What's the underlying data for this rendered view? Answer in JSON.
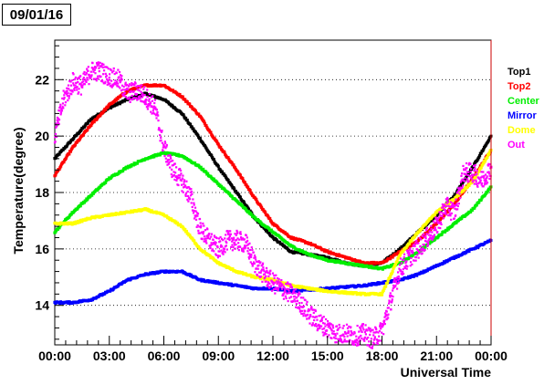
{
  "title": "09/01/16",
  "chart_data": {
    "type": "scatter",
    "xlabel": "Universal Time",
    "ylabel": "Temperature(degree)",
    "xlim": [
      0,
      24
    ],
    "ylim": [
      12.6,
      23.4
    ],
    "xticks": [
      0,
      3,
      6,
      9,
      12,
      15,
      18,
      21,
      24
    ],
    "xtick_labels": [
      "00:00",
      "03:00",
      "06:00",
      "09:00",
      "12:00",
      "15:00",
      "18:00",
      "21:00",
      "00:00"
    ],
    "yticks": [
      14,
      16,
      18,
      20,
      22
    ],
    "ytick_labels": [
      "14",
      "16",
      "18",
      "20",
      "22"
    ],
    "grid": "horizontal dotted",
    "legend_position": "right",
    "series": [
      {
        "name": "Top1",
        "color": "#000000",
        "x": [
          0,
          1,
          2,
          3,
          4,
          5,
          6,
          7,
          8,
          9,
          10,
          11,
          12,
          13,
          14,
          15,
          16,
          17,
          18,
          19,
          20,
          21,
          22,
          23,
          24
        ],
        "y": [
          19.2,
          19.9,
          20.6,
          21.0,
          21.3,
          21.5,
          21.3,
          20.8,
          19.9,
          18.9,
          18.0,
          17.1,
          16.4,
          15.9,
          15.8,
          15.7,
          15.5,
          15.4,
          15.5,
          16.0,
          16.6,
          17.2,
          17.9,
          18.9,
          20.0
        ]
      },
      {
        "name": "Top2",
        "color": "#ff0000",
        "x": [
          0,
          1,
          2,
          3,
          4,
          5,
          6,
          7,
          8,
          9,
          10,
          11,
          12,
          13,
          14,
          15,
          16,
          17,
          18,
          19,
          20,
          21,
          22,
          23,
          24
        ],
        "y": [
          18.6,
          19.6,
          20.4,
          21.1,
          21.6,
          21.8,
          21.8,
          21.4,
          20.7,
          19.7,
          18.8,
          17.8,
          16.9,
          16.4,
          16.2,
          15.9,
          15.7,
          15.5,
          15.5,
          15.9,
          16.3,
          16.9,
          17.6,
          18.5,
          19.5
        ]
      },
      {
        "name": "Center",
        "color": "#00ee00",
        "x": [
          0,
          1,
          2,
          3,
          4,
          5,
          6,
          7,
          8,
          9,
          10,
          11,
          12,
          13,
          14,
          15,
          16,
          17,
          18,
          19,
          20,
          21,
          22,
          23,
          24
        ],
        "y": [
          16.6,
          17.3,
          17.9,
          18.5,
          18.9,
          19.2,
          19.4,
          19.3,
          18.9,
          18.3,
          17.7,
          17.1,
          16.6,
          16.1,
          15.8,
          15.6,
          15.5,
          15.4,
          15.3,
          15.5,
          15.9,
          16.4,
          16.9,
          17.4,
          18.2
        ]
      },
      {
        "name": "Mirror",
        "color": "#0000ff",
        "x": [
          0,
          1,
          2,
          3,
          4,
          5,
          6,
          7,
          8,
          9,
          10,
          11,
          12,
          13,
          14,
          15,
          16,
          17,
          18,
          19,
          20,
          21,
          22,
          23,
          24
        ],
        "y": [
          14.1,
          14.1,
          14.2,
          14.5,
          14.9,
          15.1,
          15.2,
          15.2,
          14.9,
          14.8,
          14.7,
          14.6,
          14.6,
          14.5,
          14.55,
          14.6,
          14.65,
          14.7,
          14.8,
          14.9,
          15.1,
          15.4,
          15.7,
          16.0,
          16.3
        ]
      },
      {
        "name": "Dome",
        "color": "#ffff00",
        "x": [
          0,
          1,
          2,
          3,
          4,
          5,
          6,
          7,
          8,
          9,
          10,
          11,
          12,
          13,
          14,
          15,
          16,
          17,
          18,
          19,
          20,
          21,
          22,
          23,
          24
        ],
        "y": [
          16.9,
          16.9,
          17.1,
          17.2,
          17.3,
          17.4,
          17.2,
          16.8,
          16.0,
          15.5,
          15.2,
          15.0,
          14.9,
          14.7,
          14.6,
          14.5,
          14.45,
          14.4,
          14.4,
          15.8,
          16.6,
          17.3,
          17.8,
          18.4,
          19.5
        ]
      },
      {
        "name": "Out",
        "color": "#ff00ff",
        "x": [
          0,
          0.5,
          1,
          1.5,
          2,
          2.5,
          3,
          3.5,
          4,
          4.5,
          5,
          5.5,
          6,
          6.5,
          7,
          7.5,
          8,
          8.5,
          9,
          9.5,
          10,
          10.5,
          11,
          11.5,
          12,
          12.5,
          13,
          13.5,
          14,
          14.5,
          15,
          15.5,
          16,
          16.5,
          17,
          17.5,
          18,
          18.5,
          19,
          19.5,
          20,
          20.5,
          21,
          21.5,
          22,
          22.5,
          23,
          23.5,
          24
        ],
        "y": [
          20.0,
          21.3,
          21.9,
          21.8,
          22.3,
          22.3,
          22.1,
          22.0,
          21.5,
          21.6,
          21.4,
          21.0,
          19.6,
          18.8,
          18.4,
          17.8,
          16.7,
          16.3,
          16.0,
          16.3,
          16.3,
          16.2,
          15.5,
          15.1,
          14.8,
          14.6,
          14.4,
          14.1,
          13.7,
          13.4,
          13.2,
          13.0,
          13.0,
          12.9,
          13.0,
          12.8,
          13.1,
          14.2,
          15.3,
          15.7,
          16.0,
          16.4,
          16.8,
          17.5,
          17.3,
          18.7,
          18.7,
          18.4,
          18.9
        ]
      }
    ]
  }
}
